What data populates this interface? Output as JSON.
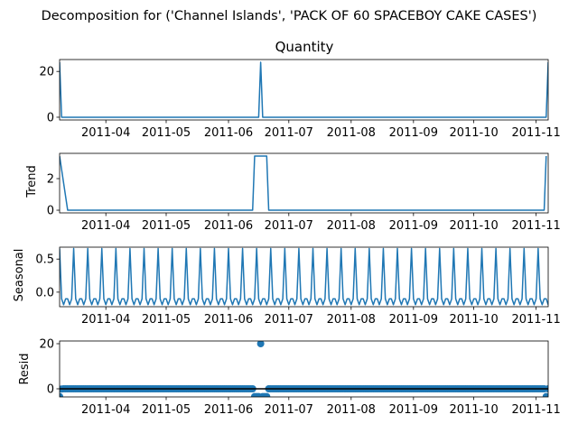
{
  "chart_data": {
    "type": "line",
    "suptitle": "Decomposition for ('Channel Islands', 'PACK OF 60 SPACEBOY CAKE CASES')",
    "line_color": "#1f77b4",
    "x_start": "2011-03-09",
    "x_end": "2011-11-07",
    "x_ticks": [
      "2011-04",
      "2011-05",
      "2011-06",
      "2011-07",
      "2011-08",
      "2011-09",
      "2011-10",
      "2011-11"
    ],
    "panels": [
      {
        "title": "Quantity",
        "ylabel": "",
        "type": "line",
        "ylim": [
          -1.2,
          25.2
        ],
        "yticks": [
          0,
          20
        ],
        "series": [
          {
            "date": "2011-03-09",
            "value": 24
          },
          {
            "date": "2011-03-10",
            "value": 0
          },
          {
            "date": "2011-06-16",
            "value": 0
          },
          {
            "date": "2011-06-17",
            "value": 24
          },
          {
            "date": "2011-06-18",
            "value": 0
          },
          {
            "date": "2011-11-06",
            "value": 0
          },
          {
            "date": "2011-11-07",
            "value": 24
          }
        ]
      },
      {
        "title": "",
        "ylabel": "Trend",
        "type": "line",
        "ylim": [
          -0.17,
          3.6
        ],
        "yticks": [
          0,
          2
        ],
        "series": [
          {
            "date": "2011-03-09",
            "value": 3.43
          },
          {
            "date": "2011-03-13",
            "value": 0
          },
          {
            "date": "2011-06-13",
            "value": 0
          },
          {
            "date": "2011-06-14",
            "value": 3.43
          },
          {
            "date": "2011-06-20",
            "value": 3.43
          },
          {
            "date": "2011-06-21",
            "value": 0
          },
          {
            "date": "2011-11-05",
            "value": 0
          },
          {
            "date": "2011-11-06",
            "value": 3.43
          }
        ]
      },
      {
        "title": "",
        "ylabel": "Seasonal",
        "type": "line",
        "ylim": [
          -0.22,
          0.68
        ],
        "yticks": [
          0.0,
          0.5
        ],
        "yticklabels": [
          "0.0",
          "0.5"
        ],
        "period": 7,
        "pattern": [
          0.66,
          -0.1,
          -0.19,
          -0.1,
          -0.1,
          -0.19,
          -0.1
        ]
      },
      {
        "title": "",
        "ylabel": "Resid",
        "type": "scatter",
        "ylim": [
          -3.6,
          21.2
        ],
        "yticks": [
          0,
          20
        ],
        "zero_line": true,
        "baseline": 0,
        "outliers": [
          {
            "date": "2011-03-09",
            "value": -3.43
          },
          {
            "date": "2011-03-10",
            "value": -0.1
          },
          {
            "date": "2011-06-14",
            "value": -3.43
          },
          {
            "date": "2011-06-15",
            "value": -3.43
          },
          {
            "date": "2011-06-16",
            "value": -3.43
          },
          {
            "date": "2011-06-17",
            "value": 20
          },
          {
            "date": "2011-06-18",
            "value": -3.43
          },
          {
            "date": "2011-06-19",
            "value": -3.43
          },
          {
            "date": "2011-06-20",
            "value": -3.43
          },
          {
            "date": "2011-11-06",
            "value": -3.43
          }
        ]
      }
    ]
  }
}
